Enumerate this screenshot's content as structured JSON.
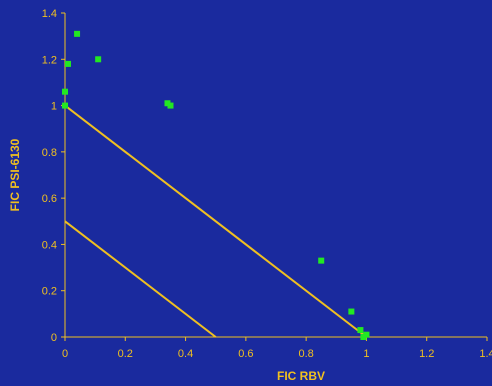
{
  "chart_data": {
    "type": "scatter",
    "xlabel": "FIC RBV",
    "ylabel": "FIC PSI-6130",
    "xlim": [
      0,
      1.4
    ],
    "ylim": [
      0,
      1.4
    ],
    "xticks": [
      "0",
      "0.2",
      "0.4",
      "0.6",
      "0.8",
      "1",
      "1.2",
      "1.4"
    ],
    "yticks": [
      "0",
      "0.2",
      "0.4",
      "0.6",
      "0.8",
      "1",
      "1.2",
      "1.4"
    ],
    "grid": false,
    "series": [
      {
        "marker": "square",
        "color": "#22e822",
        "points": [
          {
            "x": 0.04,
            "y": 1.31
          },
          {
            "x": 0.01,
            "y": 1.18
          },
          {
            "x": 0.11,
            "y": 1.2
          },
          {
            "x": 0.0,
            "y": 1.06
          },
          {
            "x": 0.0,
            "y": 1.0
          },
          {
            "x": 0.34,
            "y": 1.01
          },
          {
            "x": 0.35,
            "y": 1.0
          },
          {
            "x": 0.85,
            "y": 0.33
          },
          {
            "x": 0.95,
            "y": 0.11
          },
          {
            "x": 0.98,
            "y": 0.03
          },
          {
            "x": 1.0,
            "y": 0.01
          },
          {
            "x": 0.99,
            "y": 0.0
          }
        ]
      }
    ],
    "lines": [
      {
        "x": [
          0,
          1
        ],
        "y": [
          1,
          0
        ],
        "color": "#f0c020"
      },
      {
        "x": [
          0,
          0.5
        ],
        "y": [
          0.5,
          0
        ],
        "color": "#f0c020"
      }
    ],
    "axis_color": "#f0c020",
    "background": "#1a2a9e"
  }
}
